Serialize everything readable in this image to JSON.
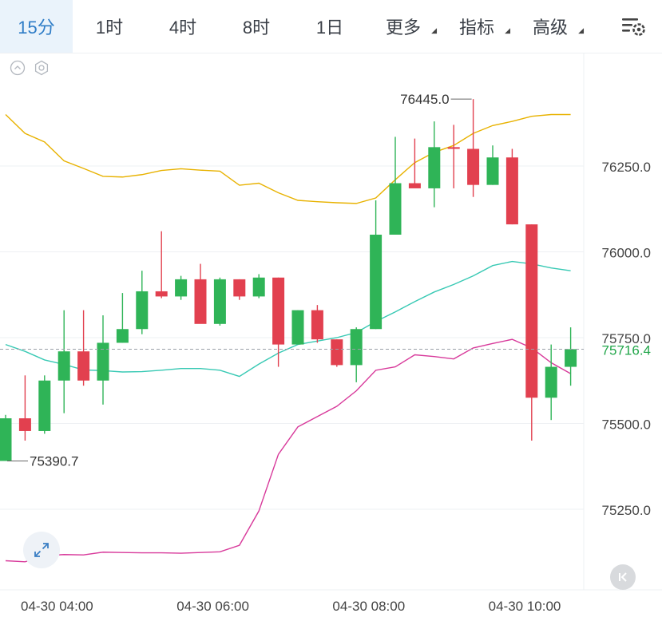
{
  "toolbar": {
    "tabs": [
      {
        "label": "15分",
        "active": true
      },
      {
        "label": "1时"
      },
      {
        "label": "4时"
      },
      {
        "label": "8时"
      },
      {
        "label": "1日"
      },
      {
        "label": "更多",
        "dropdown": true
      },
      {
        "label": "指标",
        "dropdown": true
      },
      {
        "label": "高级",
        "dropdown": true
      }
    ],
    "settings_icon": "chart-settings-icon"
  },
  "colors": {
    "up": "#2fb457",
    "down": "#e2404f",
    "upper_band": "#e8b200",
    "middle_band": "#38c9b4",
    "lower_band": "#d83a9b",
    "accent": "#2f7dc7"
  },
  "chart_data": {
    "type": "candlestick",
    "ylim": [
      75060,
      76660
    ],
    "y_ticks": [
      {
        "label": "76250.0",
        "value": 76250
      },
      {
        "label": "76000.0",
        "value": 76000
      },
      {
        "label": "75750.0",
        "value": 75750
      },
      {
        "label": "75500.0",
        "value": 75500
      },
      {
        "label": "75250.0",
        "value": 75250
      }
    ],
    "x_ticks": [
      {
        "label": "04-30 04:00",
        "index": 1
      },
      {
        "label": "04-30 06:00",
        "index": 9
      },
      {
        "label": "04-30 08:00",
        "index": 17
      },
      {
        "label": "04-30 10:00",
        "index": 25
      }
    ],
    "current_price": {
      "value": 75716.4,
      "label": "75716.4"
    },
    "annotations": {
      "high": {
        "label": "76445.0",
        "value": 76445.0,
        "index": 24
      },
      "low": {
        "label": "75390.7",
        "value": 75390.7,
        "index": 0
      }
    },
    "candles": [
      {
        "o": 75390.7,
        "h": 75525,
        "l": 75390.7,
        "c": 75515
      },
      {
        "o": 75515,
        "h": 75640,
        "l": 75450,
        "c": 75478
      },
      {
        "o": 75478,
        "h": 75640,
        "l": 75470,
        "c": 75625
      },
      {
        "o": 75625,
        "h": 75830,
        "l": 75530,
        "c": 75710
      },
      {
        "o": 75710,
        "h": 75830,
        "l": 75610,
        "c": 75625
      },
      {
        "o": 75625,
        "h": 75815,
        "l": 75555,
        "c": 75735
      },
      {
        "o": 75735,
        "h": 75880,
        "l": 75735,
        "c": 75775
      },
      {
        "o": 75775,
        "h": 75945,
        "l": 75760,
        "c": 75885
      },
      {
        "o": 75885,
        "h": 76060,
        "l": 75865,
        "c": 75870
      },
      {
        "o": 75870,
        "h": 75930,
        "l": 75860,
        "c": 75920
      },
      {
        "o": 75920,
        "h": 75965,
        "l": 75800,
        "c": 75790
      },
      {
        "o": 75790,
        "h": 75925,
        "l": 75785,
        "c": 75920
      },
      {
        "o": 75920,
        "h": 75920,
        "l": 75860,
        "c": 75870
      },
      {
        "o": 75870,
        "h": 75935,
        "l": 75865,
        "c": 75925
      },
      {
        "o": 75925,
        "h": 75925,
        "l": 75665,
        "c": 75730
      },
      {
        "o": 75730,
        "h": 75830,
        "l": 75730,
        "c": 75830
      },
      {
        "o": 75830,
        "h": 75845,
        "l": 75735,
        "c": 75745
      },
      {
        "o": 75745,
        "h": 75745,
        "l": 75665,
        "c": 75670
      },
      {
        "o": 75670,
        "h": 75780,
        "l": 75620,
        "c": 75775
      },
      {
        "o": 75775,
        "h": 76150,
        "l": 75775,
        "c": 76050
      },
      {
        "o": 76050,
        "h": 76335,
        "l": 76050,
        "c": 76200
      },
      {
        "o": 76200,
        "h": 76330,
        "l": 76190,
        "c": 76185
      },
      {
        "o": 76185,
        "h": 76380,
        "l": 76130,
        "c": 76305
      },
      {
        "o": 76305,
        "h": 76370,
        "l": 76185,
        "c": 76300
      },
      {
        "o": 76300,
        "h": 76445,
        "l": 76160,
        "c": 76195
      },
      {
        "o": 76195,
        "h": 76310,
        "l": 76195,
        "c": 76275
      },
      {
        "o": 76275,
        "h": 76300,
        "l": 76080,
        "c": 76080
      },
      {
        "o": 76080,
        "h": 76080,
        "l": 75450,
        "c": 75575
      },
      {
        "o": 75575,
        "h": 75730,
        "l": 75510,
        "c": 75665
      },
      {
        "o": 75665,
        "h": 75780,
        "l": 75610,
        "c": 75716.4
      }
    ],
    "series": [
      {
        "key": "upper",
        "values": [
          76400,
          76345,
          76320,
          76265,
          76243,
          76220,
          76218,
          76225,
          76237,
          76242,
          76238,
          76235,
          76194,
          76200,
          76172,
          76150,
          76146,
          76143,
          76141,
          76157,
          76210,
          76260,
          76290,
          76310,
          76345,
          76368,
          76380,
          76395,
          76400,
          76400
        ]
      },
      {
        "key": "middle",
        "values": [
          75730,
          75710,
          75685,
          75672,
          75656,
          75654,
          75650,
          75651,
          75655,
          75660,
          75660,
          75655,
          75637,
          75673,
          75705,
          75730,
          75740,
          75750,
          75765,
          75797,
          75825,
          75855,
          75883,
          75905,
          75930,
          75960,
          75972,
          75965,
          75953,
          75945
        ]
      },
      {
        "key": "lower",
        "values": [
          75100,
          75097,
          75115,
          75118,
          75117,
          75125,
          75124,
          75123,
          75123,
          75122,
          75124,
          75126,
          75145,
          75245,
          75410,
          75490,
          75520,
          75550,
          75595,
          75655,
          75665,
          75700,
          75695,
          75688,
          75720,
          75733,
          75745,
          75720,
          75677,
          75645
        ]
      }
    ]
  }
}
